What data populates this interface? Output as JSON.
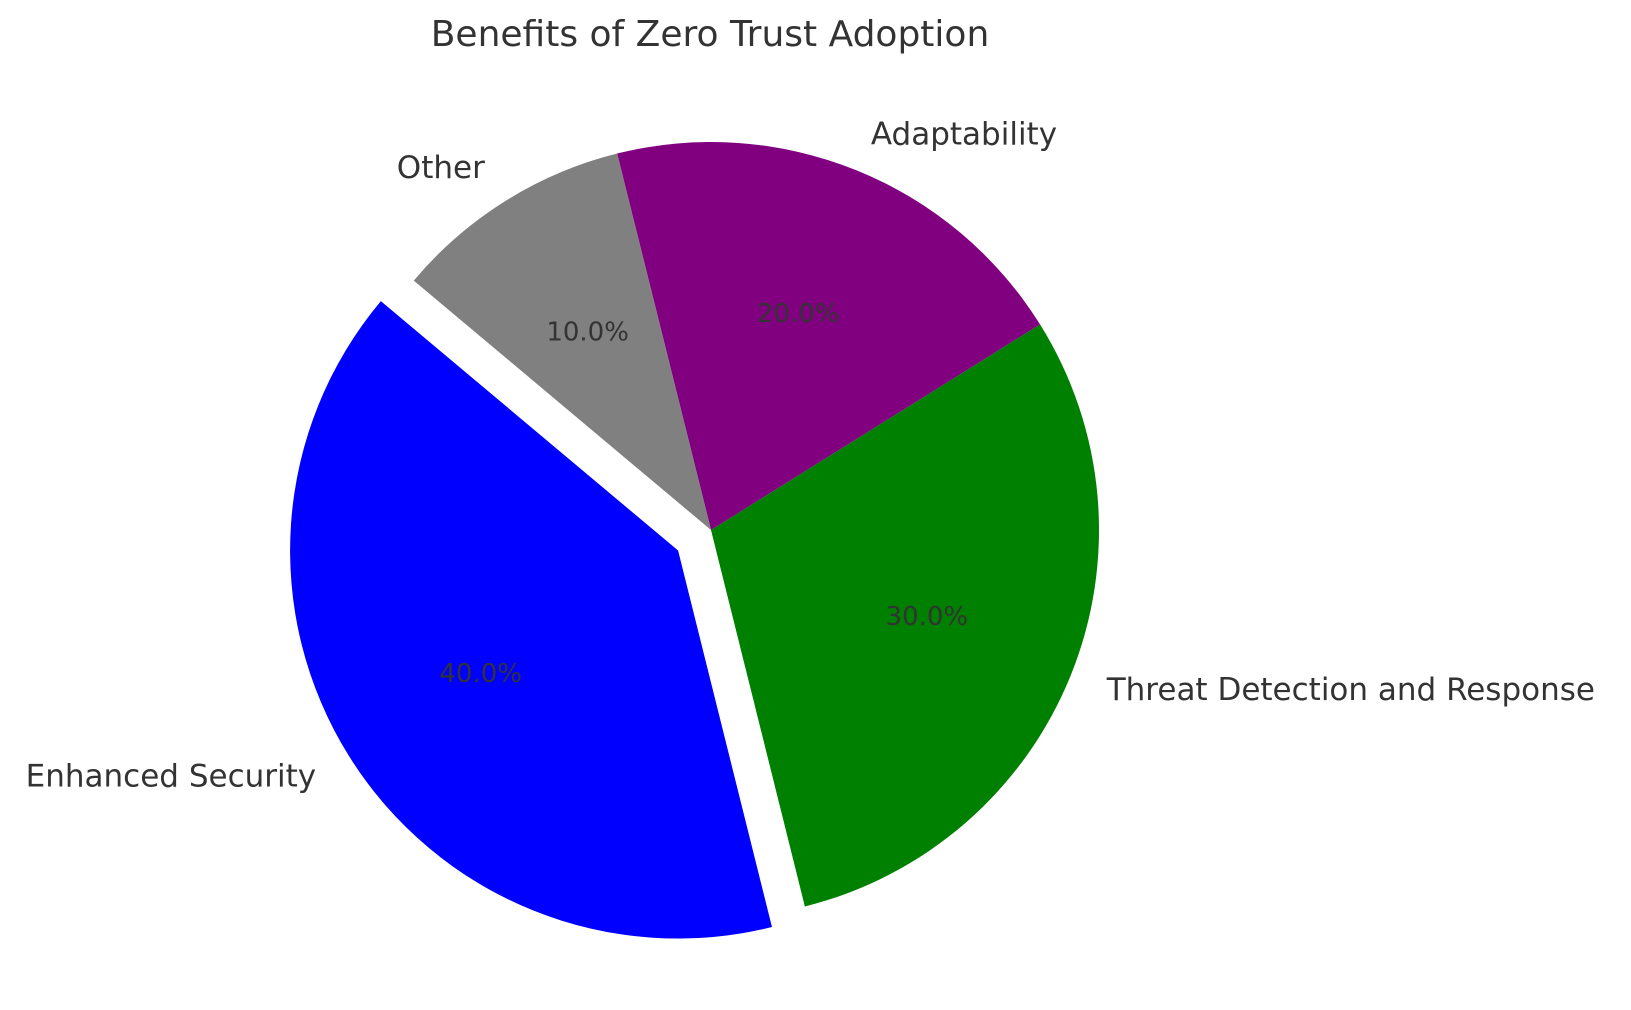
{
  "chart_data": {
    "type": "pie",
    "title": "Benefits of Zero Trust Adoption",
    "categories": [
      "Enhanced Security",
      "Threat Detection and Response",
      "Adaptability",
      "Other"
    ],
    "values": [
      40,
      30,
      20,
      10
    ],
    "percent_labels": [
      "40.0%",
      "30.0%",
      "20.0%",
      "10.0%"
    ],
    "colors": [
      "#0000ff",
      "#008000",
      "#800080",
      "#808080"
    ],
    "exploded": [
      "Enhanced Security"
    ],
    "start_angle_deg": 140,
    "direction": "counterclockwise",
    "legend": "none"
  }
}
